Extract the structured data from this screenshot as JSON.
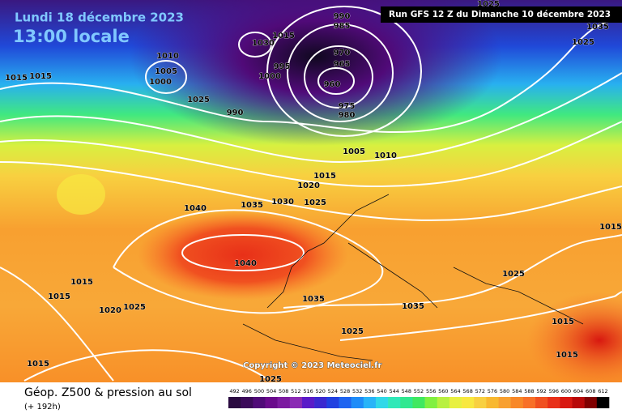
{
  "header": {
    "date": "Lundi 18 décembre 2023",
    "time": "13:00 locale",
    "run": "Run GFS 12 Z du Dimanche 10 décembre 2023"
  },
  "map": {
    "copyright": "Copyright © 2023 Meteociel.fr",
    "isobar_labels": [
      990,
      985,
      1015,
      1030,
      1010,
      995,
      970,
      965,
      1005,
      1000,
      1000,
      960,
      1025,
      975,
      980,
      990,
      1005,
      1010,
      1015,
      1020,
      1030,
      1025,
      1040,
      1035,
      1040,
      1015,
      1015,
      1020,
      1025,
      1035,
      1035,
      1025,
      1015,
      1025,
      1025,
      1035,
      1025,
      1015,
      1025,
      1015,
      1015,
      1015,
      1015
    ]
  },
  "footer": {
    "title": "Géop. Z500 & pression au sol",
    "lead": "(+ 192h)"
  },
  "colorbar": {
    "labels": [
      492,
      496,
      500,
      504,
      508,
      512,
      516,
      520,
      524,
      528,
      532,
      536,
      540,
      544,
      548,
      552,
      556,
      560,
      564,
      568,
      572,
      576,
      580,
      584,
      588,
      592,
      596,
      600,
      604,
      608,
      612
    ],
    "colors": [
      "#2a0a40",
      "#3c0a5a",
      "#500a78",
      "#6a0a8c",
      "#7c1aa0",
      "#8a2ab4",
      "#5a1ac8",
      "#3a28d0",
      "#2040e0",
      "#1e64f0",
      "#1e8cf8",
      "#28b4f8",
      "#30d8e8",
      "#30e8b8",
      "#30e890",
      "#40e860",
      "#80f040",
      "#b8f040",
      "#e8f040",
      "#f8e840",
      "#f8d040",
      "#f8b830",
      "#f8a030",
      "#f88828",
      "#f87028",
      "#f05020",
      "#e83018",
      "#d81810",
      "#b80808",
      "#800000",
      "#000000"
    ]
  }
}
